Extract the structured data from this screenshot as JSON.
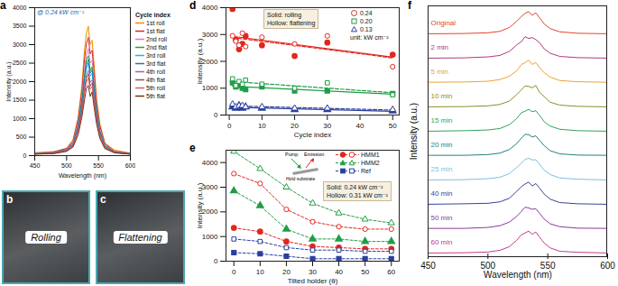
{
  "chart_data": [
    {
      "panel": "a",
      "type": "line",
      "annotation": "@ 0.24 kW cm⁻²",
      "x_label": "Wavelength (nm)",
      "y_label": "Intensity (a.u.)",
      "legend_title": "Cycle index",
      "legend": "right",
      "x": [
        450,
        480,
        500,
        510,
        518,
        524,
        528,
        531,
        534,
        537,
        540,
        543,
        547,
        552,
        560,
        575,
        600
      ],
      "xlim": [
        450,
        600
      ],
      "xticks": [
        450,
        500,
        550,
        600
      ],
      "ylim": [
        0,
        4000
      ],
      "yticks": [
        0,
        500,
        1000,
        1500,
        2000,
        2500,
        3000,
        3500,
        4000
      ],
      "series": [
        {
          "name": "1st roll",
          "color": "#f08c00",
          "values": [
            80,
            110,
            200,
            430,
            1020,
            1900,
            2850,
            3300,
            3500,
            3000,
            3120,
            2480,
            1550,
            880,
            340,
            150,
            70
          ]
        },
        {
          "name": "1st flat",
          "color": "#d62728",
          "values": [
            60,
            100,
            190,
            390,
            980,
            1740,
            2600,
            3020,
            3200,
            2750,
            2850,
            2260,
            1420,
            810,
            330,
            120,
            60
          ]
        },
        {
          "name": "2nd roll",
          "color": "#e377c2",
          "values": [
            60,
            90,
            170,
            350,
            880,
            1580,
            2350,
            2720,
            2900,
            2500,
            2580,
            2050,
            1290,
            730,
            300,
            110,
            60
          ]
        },
        {
          "name": "2nd flat",
          "color": "#2ca02c",
          "values": [
            50,
            80,
            160,
            330,
            800,
            1500,
            2140,
            2600,
            2700,
            2300,
            2400,
            1900,
            1230,
            670,
            280,
            100,
            50
          ]
        },
        {
          "name": "3rd roll",
          "color": "#17becf",
          "values": [
            50,
            70,
            150,
            310,
            760,
            1360,
            2020,
            2350,
            2500,
            2150,
            2230,
            1760,
            1110,
            630,
            240,
            100,
            50
          ]
        },
        {
          "name": "3rd flat",
          "color": "#1f77b4",
          "values": [
            50,
            80,
            160,
            300,
            790,
            1420,
            2100,
            2450,
            2600,
            2230,
            2320,
            1830,
            1160,
            660,
            250,
            100,
            50
          ]
        },
        {
          "name": "4th roll",
          "color": "#9467bd",
          "values": [
            45,
            70,
            140,
            280,
            700,
            1250,
            1860,
            2170,
            2300,
            1980,
            2050,
            1620,
            1020,
            580,
            230,
            90,
            45
          ]
        },
        {
          "name": "4th flat",
          "color": "#8c564b",
          "values": [
            45,
            65,
            130,
            270,
            650,
            1220,
            1740,
            2100,
            2200,
            1880,
            1960,
            1550,
            980,
            560,
            220,
            90,
            45
          ]
        },
        {
          "name": "5th roll",
          "color": "#e05a5a",
          "values": [
            40,
            60,
            130,
            250,
            640,
            1140,
            1700,
            1980,
            2100,
            1800,
            1870,
            1480,
            940,
            530,
            210,
            80,
            40
          ]
        },
        {
          "name": "5th flat",
          "color": "#7a2e1e",
          "values": [
            40,
            55,
            115,
            230,
            560,
            1050,
            1500,
            1820,
            1900,
            1600,
            1720,
            1320,
            860,
            470,
            190,
            75,
            40
          ]
        }
      ]
    },
    {
      "panel": "b",
      "type": "image",
      "label": "Rolling"
    },
    {
      "panel": "c",
      "type": "image",
      "label": "Flattening"
    },
    {
      "panel": "d",
      "type": "regression",
      "x_label": "Cycle index",
      "y_label": "Intensity (a.u.)",
      "annotations": [
        "Solid: rolling",
        "Hollow: flattening"
      ],
      "legend": "top-right",
      "legend_note": "unit: kW cm⁻²",
      "x": [
        1,
        2,
        3,
        4,
        5,
        10,
        20,
        30,
        50
      ],
      "xlim": [
        -1,
        52
      ],
      "xticks": [
        0,
        10,
        20,
        30,
        40,
        50
      ],
      "ylim": [
        0,
        4000
      ],
      "yticks": [
        0,
        1000,
        2000,
        3000,
        4000
      ],
      "series": [
        {
          "name": "0.24",
          "color": "#e3261d",
          "marker": "circle",
          "values": [
            3950,
            2800,
            2450,
            2650,
            2950,
            2600,
            2200,
            2700,
            2250
          ],
          "hollow_values": [
            2950,
            2750,
            2600,
            3050,
            2550,
            2900,
            2650,
            2950,
            1800
          ]
        },
        {
          "name": "0.20",
          "color": "#1f9e46",
          "marker": "square",
          "values": [
            1200,
            1050,
            1100,
            1000,
            950,
            1050,
            900,
            900,
            800
          ],
          "hollow_values": [
            1350,
            1100,
            1250,
            1150,
            1300,
            1150,
            1000,
            1200,
            750
          ]
        },
        {
          "name": "0.13",
          "color": "#2b3f9e",
          "marker": "triangle",
          "values": [
            300,
            250,
            350,
            250,
            300,
            250,
            200,
            200,
            150
          ],
          "hollow_values": [
            400,
            300,
            350,
            350,
            300,
            300,
            250,
            250,
            200
          ]
        }
      ]
    },
    {
      "panel": "e",
      "type": "line",
      "line_style": "dashed",
      "x_label": "Tilted holder (θ)",
      "y_label": "Intensity (a.u.)",
      "annotations": [
        "Solid: 0.24 kW cm⁻²",
        "Hollow: 0.31 kW cm⁻²"
      ],
      "legend": "top-right",
      "inset_labels": [
        "Pump",
        "Emission",
        "Hold substrate"
      ],
      "x": [
        0,
        10,
        20,
        30,
        40,
        50,
        60
      ],
      "xlim": [
        -3,
        63
      ],
      "xticks": [
        0,
        10,
        20,
        30,
        40,
        50,
        60
      ],
      "ylim": [
        0,
        4500
      ],
      "yticks": [
        0,
        1000,
        2000,
        3000,
        4000
      ],
      "series": [
        {
          "name": "HMM1",
          "color": "#e3261d",
          "marker": "circle",
          "values": [
            1350,
            1200,
            800,
            600,
            550,
            500,
            500
          ],
          "hollow_values": [
            3550,
            3150,
            2100,
            1600,
            1400,
            1300,
            1300
          ]
        },
        {
          "name": "HMM2",
          "color": "#1f9e46",
          "marker": "triangle",
          "values": [
            2850,
            2250,
            1300,
            900,
            900,
            800,
            800
          ],
          "hollow_values": [
            4450,
            3750,
            3000,
            2350,
            1950,
            1700,
            1550
          ]
        },
        {
          "name": "Ref",
          "color": "#2b3f9e",
          "marker": "square",
          "values": [
            350,
            300,
            200,
            100,
            100,
            100,
            100
          ],
          "hollow_values": [
            900,
            800,
            550,
            450,
            450,
            400,
            400
          ]
        }
      ]
    },
    {
      "panel": "f",
      "type": "ridgeline",
      "tick_labels": "x",
      "x_label": "Wavelength (nm)",
      "y_label": "Intensity (a.u.)",
      "x": [
        450,
        480,
        500,
        510,
        518,
        524,
        528,
        531,
        534,
        537,
        540,
        543,
        547,
        552,
        560,
        575,
        600
      ],
      "xlim": [
        450,
        600
      ],
      "xticks": [
        450,
        500,
        550,
        600
      ],
      "ylim": [
        0,
        100
      ],
      "series": [
        {
          "name": "Original",
          "color": "#e2452f",
          "values": [
            4,
            5,
            8,
            14,
            30,
            55,
            75,
            88,
            95,
            80,
            90,
            70,
            45,
            25,
            12,
            6,
            4
          ]
        },
        {
          "name": "2 min",
          "color": "#b0377f",
          "values": [
            4,
            5,
            9,
            15,
            32,
            58,
            72,
            92,
            85,
            88,
            80,
            68,
            42,
            24,
            11,
            6,
            4
          ]
        },
        {
          "name": "5 min",
          "color": "#f0a030",
          "values": [
            5,
            6,
            9,
            16,
            30,
            52,
            78,
            85,
            96,
            78,
            86,
            66,
            44,
            26,
            12,
            7,
            5
          ]
        },
        {
          "name": "10 min",
          "color": "#8c8c2a",
          "values": [
            4,
            5,
            8,
            14,
            28,
            54,
            74,
            90,
            88,
            82,
            92,
            64,
            46,
            23,
            11,
            6,
            4
          ]
        },
        {
          "name": "15 min",
          "color": "#2ea45a",
          "values": [
            4,
            6,
            9,
            15,
            31,
            56,
            80,
            86,
            94,
            84,
            88,
            70,
            43,
            25,
            12,
            6,
            4
          ]
        },
        {
          "name": "20 min",
          "color": "#23807f",
          "values": [
            5,
            5,
            8,
            14,
            29,
            53,
            76,
            91,
            90,
            80,
            85,
            67,
            45,
            24,
            11,
            6,
            5
          ]
        },
        {
          "name": "25 min",
          "color": "#7fbde0",
          "values": [
            4,
            5,
            9,
            15,
            30,
            55,
            73,
            88,
            93,
            86,
            87,
            69,
            44,
            26,
            12,
            7,
            4
          ]
        },
        {
          "name": "40 min",
          "color": "#34449a",
          "values": [
            4,
            6,
            8,
            14,
            29,
            57,
            77,
            87,
            95,
            79,
            89,
            71,
            46,
            25,
            11,
            6,
            4
          ]
        },
        {
          "name": "50 min",
          "color": "#8b3a9c",
          "values": [
            5,
            5,
            9,
            16,
            31,
            54,
            75,
            92,
            89,
            83,
            86,
            68,
            43,
            24,
            12,
            6,
            5
          ]
        },
        {
          "name": "60 min",
          "color": "#c43a8e",
          "values": [
            4,
            5,
            8,
            15,
            30,
            56,
            79,
            86,
            94,
            81,
            90,
            70,
            45,
            25,
            11,
            7,
            4
          ]
        }
      ]
    }
  ]
}
